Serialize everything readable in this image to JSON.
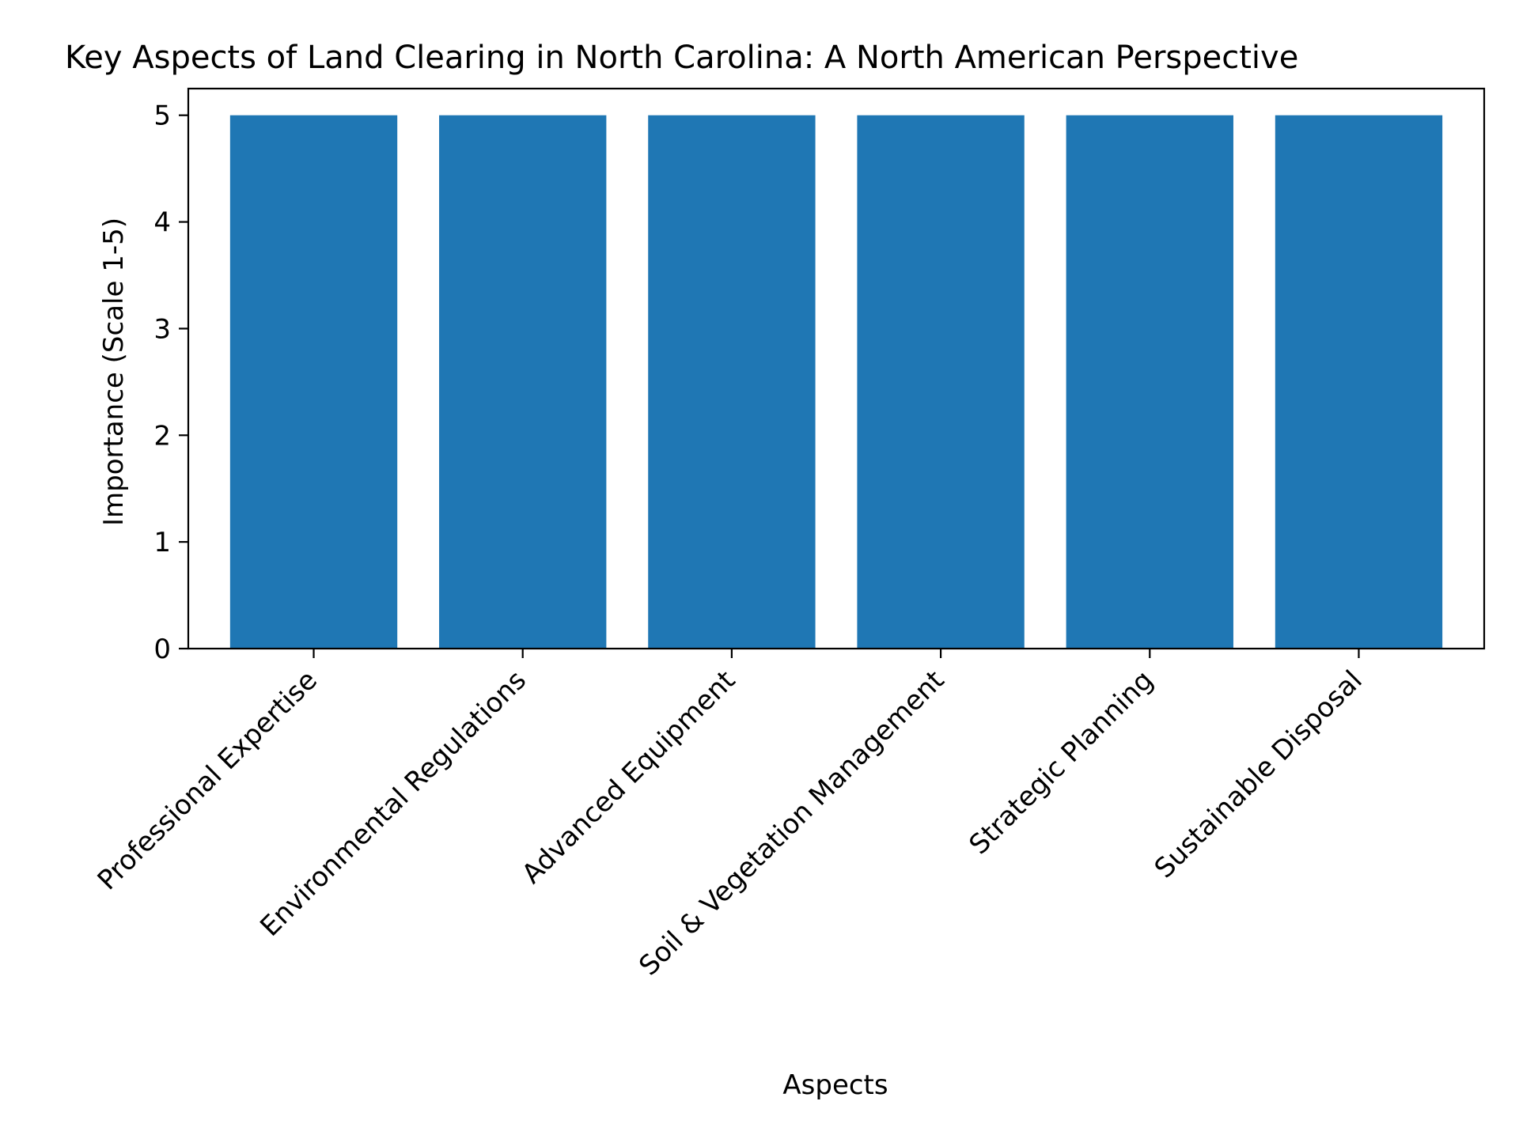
{
  "chart_data": {
    "type": "bar",
    "title": "Key Aspects of Land Clearing in North Carolina: A North American Perspective",
    "xlabel": "Aspects",
    "ylabel": "Importance (Scale 1-5)",
    "categories": [
      "Professional Expertise",
      "Environmental Regulations",
      "Advanced Equipment",
      "Soil & Vegetation Management",
      "Strategic Planning",
      "Sustainable Disposal"
    ],
    "values": [
      5,
      5,
      5,
      5,
      5,
      5
    ],
    "ylim": [
      0,
      5.25
    ],
    "yticks": [
      0,
      1,
      2,
      3,
      4,
      5
    ],
    "bar_color": "#1f77b4",
    "grid": false,
    "legend": "none"
  }
}
